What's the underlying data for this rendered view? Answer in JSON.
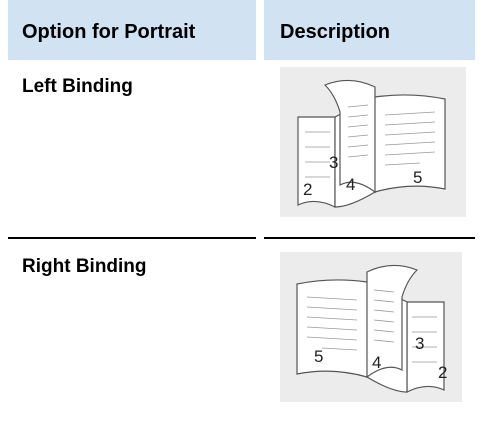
{
  "table": {
    "header": [
      "Option for Portrait",
      "Description"
    ],
    "rows": [
      {
        "option": "Left Binding",
        "pages": [
          "2",
          "3",
          "4",
          "5"
        ]
      },
      {
        "option": "Right Binding",
        "pages": [
          "5",
          "4",
          "3",
          "2"
        ]
      }
    ]
  }
}
